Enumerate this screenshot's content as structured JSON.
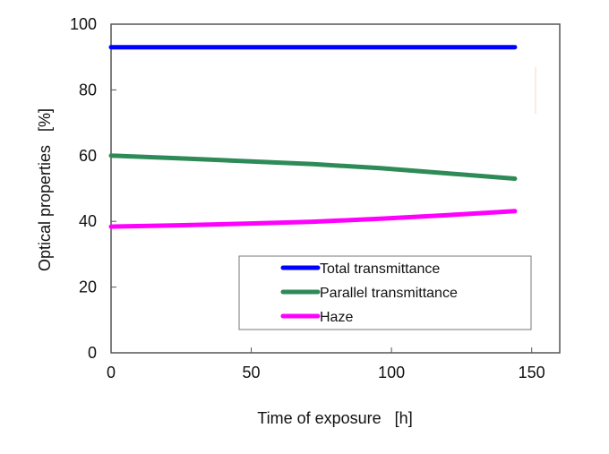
{
  "chart_data": {
    "type": "line",
    "title": "",
    "xlabel": "Time of exposure   [h]",
    "ylabel": "Optical properties   [%]",
    "xlim": [
      0,
      160
    ],
    "ylim": [
      0,
      100
    ],
    "xticks": [
      0,
      50,
      100,
      150
    ],
    "yticks": [
      0,
      20,
      40,
      60,
      80,
      100
    ],
    "grid": false,
    "legend_position": "bottom-right",
    "x": [
      0,
      24,
      48,
      72,
      96,
      120,
      144
    ],
    "series": [
      {
        "name": "Total transmittance",
        "color": "#0000ff",
        "values": [
          93,
          93,
          93,
          93,
          93,
          93,
          93
        ]
      },
      {
        "name": "Parallel transmittance",
        "color": "#2e8b57",
        "values": [
          60,
          59.2,
          58.3,
          57.4,
          56.2,
          54.6,
          53
        ]
      },
      {
        "name": "Haze",
        "color": "#ff00ff",
        "values": [
          38.4,
          38.8,
          39.3,
          39.9,
          40.8,
          41.9,
          43.1
        ]
      }
    ]
  }
}
